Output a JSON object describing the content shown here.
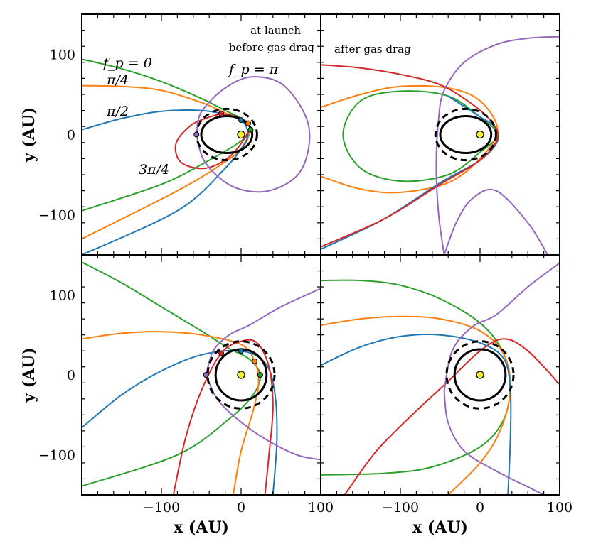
{
  "chart_data": [
    {
      "type": "line",
      "panel": "top-left",
      "xlim": [
        -200,
        100
      ],
      "ylim": [
        -150,
        150
      ],
      "xticks": [
        -100,
        0,
        100
      ],
      "yticks": [
        -100,
        0,
        100
      ],
      "xlabel": "",
      "ylabel": "y (AU)",
      "annotations": [
        "at launch",
        "before gas drag"
      ],
      "curve_labels": {
        "green": "fp = 0",
        "orange": "π/4",
        "blue": "π/2",
        "red": "3π/4",
        "purple": "fp = π"
      },
      "inner_orbit": {
        "cx": -18,
        "cy": 0,
        "a": 32,
        "b": 23
      },
      "dashed_orbit": {
        "cx": -18,
        "cy": 0,
        "a": 38,
        "b": 32
      },
      "star": [
        0,
        0
      ],
      "launch_points": [
        {
          "color": "green",
          "x": 12,
          "y": 6
        },
        {
          "color": "orange",
          "x": 9,
          "y": 14
        },
        {
          "color": "blue",
          "x": 0,
          "y": 18
        },
        {
          "color": "red",
          "x": -25,
          "y": 26
        },
        {
          "color": "purple",
          "x": -56,
          "y": 0
        }
      ],
      "series": [
        {
          "color": "green",
          "points": [
            [
              -200,
              94
            ],
            [
              -150,
              82
            ],
            [
              -100,
              66
            ],
            [
              -50,
              45
            ],
            [
              -20,
              30
            ],
            [
              0,
              20
            ],
            [
              12,
              6
            ],
            [
              0,
              -8
            ],
            [
              -40,
              -32
            ],
            [
              -100,
              -62
            ],
            [
              -200,
              -95
            ]
          ]
        },
        {
          "color": "orange",
          "points": [
            [
              -200,
              61
            ],
            [
              -150,
              60
            ],
            [
              -100,
              55
            ],
            [
              -50,
              40
            ],
            [
              -20,
              27
            ],
            [
              9,
              14
            ],
            [
              5,
              -12
            ],
            [
              -20,
              -34
            ],
            [
              -80,
              -70
            ],
            [
              -200,
              -130
            ]
          ]
        },
        {
          "color": "blue",
          "points": [
            [
              -200,
              6
            ],
            [
              -150,
              20
            ],
            [
              -100,
              29
            ],
            [
              -50,
              30
            ],
            [
              -20,
              25
            ],
            [
              0,
              18
            ],
            [
              8,
              5
            ],
            [
              5,
              -10
            ],
            [
              -20,
              -42
            ],
            [
              -80,
              -95
            ],
            [
              -200,
              -150
            ]
          ]
        },
        {
          "color": "red",
          "points": [
            [
              -25,
              26
            ],
            [
              -5,
              22
            ],
            [
              10,
              12
            ],
            [
              6,
              -2
            ],
            [
              -15,
              -28
            ],
            [
              -45,
              -42
            ],
            [
              -75,
              -35
            ],
            [
              -82,
              -12
            ],
            [
              -65,
              10
            ],
            [
              -45,
              20
            ],
            [
              -25,
              26
            ]
          ]
        },
        {
          "color": "purple",
          "points": [
            [
              -56,
              0
            ],
            [
              -50,
              28
            ],
            [
              -20,
              58
            ],
            [
              15,
              72
            ],
            [
              55,
              60
            ],
            [
              85,
              10
            ],
            [
              75,
              -45
            ],
            [
              35,
              -70
            ],
            [
              -10,
              -65
            ],
            [
              -45,
              -35
            ],
            [
              -56,
              0
            ]
          ]
        }
      ]
    },
    {
      "type": "line",
      "panel": "top-right",
      "xlim": [
        -200,
        100
      ],
      "ylim": [
        -150,
        150
      ],
      "xticks": [
        -100,
        0,
        100
      ],
      "yticks": [
        -100,
        0,
        100
      ],
      "xlabel": "",
      "ylabel": "",
      "annotations": [
        "after gas drag"
      ],
      "inner_orbit": {
        "cx": -18,
        "cy": 0,
        "a": 32,
        "b": 23
      },
      "dashed_orbit": {
        "cx": -18,
        "cy": 0,
        "a": 38,
        "b": 32
      },
      "star": [
        0,
        0
      ],
      "series": [
        {
          "color": "green",
          "points": [
            [
              0,
              22
            ],
            [
              -40,
              48
            ],
            [
              -100,
              54
            ],
            [
              -150,
              42
            ],
            [
              -172,
              0
            ],
            [
              -150,
              -42
            ],
            [
              -100,
              -58
            ],
            [
              -40,
              -50
            ],
            [
              0,
              -22
            ],
            [
              22,
              0
            ],
            [
              0,
              22
            ]
          ]
        },
        {
          "color": "orange",
          "points": [
            [
              -200,
              34
            ],
            [
              -150,
              50
            ],
            [
              -100,
              60
            ],
            [
              -40,
              58
            ],
            [
              0,
              42
            ],
            [
              22,
              5
            ],
            [
              0,
              -30
            ],
            [
              -40,
              -60
            ],
            [
              -100,
              -72
            ],
            [
              -150,
              -68
            ],
            [
              -200,
              -52
            ]
          ]
        },
        {
          "color": "blue",
          "points": [
            [
              -200,
              -143
            ],
            [
              -120,
              -105
            ],
            [
              -50,
              -60
            ],
            [
              0,
              -32
            ],
            [
              22,
              -8
            ],
            [
              18,
              10
            ],
            [
              0,
              22
            ],
            [
              -40,
              48
            ]
          ]
        },
        {
          "color": "red",
          "points": [
            [
              -200,
              87
            ],
            [
              -150,
              83
            ],
            [
              -100,
              75
            ],
            [
              -50,
              62
            ],
            [
              -10,
              38
            ],
            [
              15,
              15
            ],
            [
              22,
              -5
            ],
            [
              0,
              -32
            ],
            [
              -50,
              -62
            ],
            [
              -120,
              -105
            ],
            [
              -200,
              -140
            ]
          ]
        },
        {
          "color": "purple",
          "points": [
            [
              -45,
              -150
            ],
            [
              -52,
              -100
            ],
            [
              -55,
              -40
            ],
            [
              -52,
              20
            ],
            [
              -45,
              55
            ],
            [
              -20,
              90
            ],
            [
              20,
              112
            ],
            [
              60,
              120
            ],
            [
              100,
              122
            ]
          ]
        },
        {
          "color": "purple",
          "points": [
            [
              -45,
              -150
            ],
            [
              -30,
              -110
            ],
            [
              -10,
              -80
            ],
            [
              20,
              -70
            ],
            [
              60,
              -110
            ],
            [
              85,
              -150
            ]
          ]
        }
      ]
    },
    {
      "type": "line",
      "panel": "bottom-left",
      "xlim": [
        -200,
        100
      ],
      "ylim": [
        -150,
        150
      ],
      "xticks": [
        -100,
        0,
        100
      ],
      "yticks": [
        -100,
        0,
        100
      ],
      "xlabel": "x (AU)",
      "ylabel": "y (AU)",
      "inner_orbit": {
        "cx": 0,
        "cy": 0,
        "a": 32,
        "b": 32
      },
      "dashed_orbit": {
        "cx": 0,
        "cy": 0,
        "a": 42,
        "b": 42
      },
      "star": [
        0,
        0
      ],
      "launch_points": [
        {
          "color": "green",
          "x": 24,
          "y": 0
        },
        {
          "color": "orange",
          "x": 17,
          "y": 17
        },
        {
          "color": "blue",
          "x": 0,
          "y": 30
        },
        {
          "color": "red",
          "x": -25,
          "y": 27
        },
        {
          "color": "purple",
          "x": -44,
          "y": 0
        }
      ],
      "series": [
        {
          "color": "green",
          "points": [
            [
              -200,
              141
            ],
            [
              -150,
              115
            ],
            [
              -100,
              85
            ],
            [
              -50,
              55
            ],
            [
              -15,
              33
            ],
            [
              10,
              20
            ],
            [
              24,
              0
            ],
            [
              15,
              -25
            ],
            [
              -15,
              -55
            ],
            [
              -80,
              -100
            ],
            [
              -200,
              -139
            ]
          ]
        },
        {
          "color": "orange",
          "points": [
            [
              -200,
              45
            ],
            [
              -150,
              52
            ],
            [
              -100,
              54
            ],
            [
              -50,
              50
            ],
            [
              0,
              38
            ],
            [
              17,
              17
            ],
            [
              22,
              -10
            ],
            [
              15,
              -45
            ],
            [
              0,
              -95
            ],
            [
              -10,
              -150
            ]
          ]
        },
        {
          "color": "blue",
          "points": [
            [
              -200,
              -66
            ],
            [
              -150,
              -25
            ],
            [
              -100,
              5
            ],
            [
              -50,
              25
            ],
            [
              0,
              30
            ],
            [
              30,
              15
            ],
            [
              42,
              -20
            ],
            [
              45,
              -80
            ],
            [
              40,
              -150
            ]
          ]
        },
        {
          "color": "red",
          "points": [
            [
              -85,
              -150
            ],
            [
              -70,
              -80
            ],
            [
              -50,
              -20
            ],
            [
              -25,
              27
            ],
            [
              0,
              42
            ],
            [
              20,
              40
            ],
            [
              35,
              10
            ],
            [
              40,
              -40
            ],
            [
              35,
              -100
            ],
            [
              30,
              -150
            ]
          ]
        },
        {
          "color": "purple",
          "points": [
            [
              -44,
              0
            ],
            [
              -35,
              30
            ],
            [
              -15,
              50
            ],
            [
              10,
              62
            ],
            [
              50,
              85
            ],
            [
              100,
              108
            ]
          ]
        },
        {
          "color": "purple",
          "points": [
            [
              -44,
              0
            ],
            [
              -30,
              -30
            ],
            [
              -5,
              -55
            ],
            [
              30,
              -80
            ],
            [
              70,
              -100
            ],
            [
              100,
              -106
            ]
          ]
        }
      ]
    },
    {
      "type": "line",
      "panel": "bottom-right",
      "xlim": [
        -200,
        100
      ],
      "ylim": [
        -150,
        150
      ],
      "xticks": [
        -100,
        0,
        100
      ],
      "yticks": [
        -100,
        0,
        100
      ],
      "xlabel": "x (AU)",
      "ylabel": "",
      "inner_orbit": {
        "cx": 0,
        "cy": 0,
        "a": 32,
        "b": 32
      },
      "dashed_orbit": {
        "cx": 0,
        "cy": 0,
        "a": 42,
        "b": 42
      },
      "star": [
        0,
        0
      ],
      "series": [
        {
          "color": "green",
          "points": [
            [
              -200,
              118
            ],
            [
              -150,
              118
            ],
            [
              -100,
              112
            ],
            [
              -50,
              95
            ],
            [
              0,
              65
            ],
            [
              28,
              30
            ],
            [
              38,
              -10
            ],
            [
              30,
              -55
            ],
            [
              0,
              -90
            ],
            [
              -60,
              -115
            ],
            [
              -120,
              -123
            ],
            [
              -200,
              -125
            ]
          ]
        },
        {
          "color": "orange",
          "points": [
            [
              -200,
              62
            ],
            [
              -150,
              70
            ],
            [
              -100,
              73
            ],
            [
              -50,
              70
            ],
            [
              0,
              55
            ],
            [
              30,
              25
            ],
            [
              38,
              -20
            ],
            [
              25,
              -70
            ],
            [
              0,
              -110
            ],
            [
              -40,
              -150
            ]
          ]
        },
        {
          "color": "blue",
          "points": [
            [
              -200,
              12
            ],
            [
              -150,
              35
            ],
            [
              -100,
              48
            ],
            [
              -50,
              50
            ],
            [
              0,
              40
            ],
            [
              30,
              20
            ],
            [
              38,
              -20
            ],
            [
              38,
              -80
            ],
            [
              35,
              -150
            ]
          ]
        },
        {
          "color": "red",
          "points": [
            [
              -170,
              -150
            ],
            [
              -130,
              -95
            ],
            [
              -80,
              -45
            ],
            [
              -40,
              -8
            ],
            [
              0,
              30
            ],
            [
              30,
              45
            ],
            [
              60,
              30
            ],
            [
              100,
              -12
            ]
          ]
        },
        {
          "color": "purple",
          "points": [
            [
              -45,
              -20
            ],
            [
              -40,
              -60
            ],
            [
              -20,
              -95
            ],
            [
              20,
              -120
            ],
            [
              60,
              -140
            ],
            [
              80,
              -150
            ]
          ]
        },
        {
          "color": "purple",
          "points": [
            [
              -45,
              -20
            ],
            [
              -35,
              30
            ],
            [
              -10,
              60
            ],
            [
              20,
              75
            ],
            [
              60,
              110
            ],
            [
              100,
              140
            ]
          ]
        }
      ]
    }
  ],
  "colors": {
    "green": "#2ca02c",
    "orange": "#ff7f0e",
    "blue": "#1f77b4",
    "red": "#d62728",
    "purple": "#9467bd",
    "star": "#f5f02a"
  },
  "labels": {
    "fp0": "f_p = 0",
    "pi4": "π/4",
    "pi2": "π/2",
    "threepi4": "3π/4",
    "fppi": "f_p = π",
    "at_launch": "at launch",
    "before_gas_drag": "before gas drag",
    "after_gas_drag": "after gas drag"
  }
}
